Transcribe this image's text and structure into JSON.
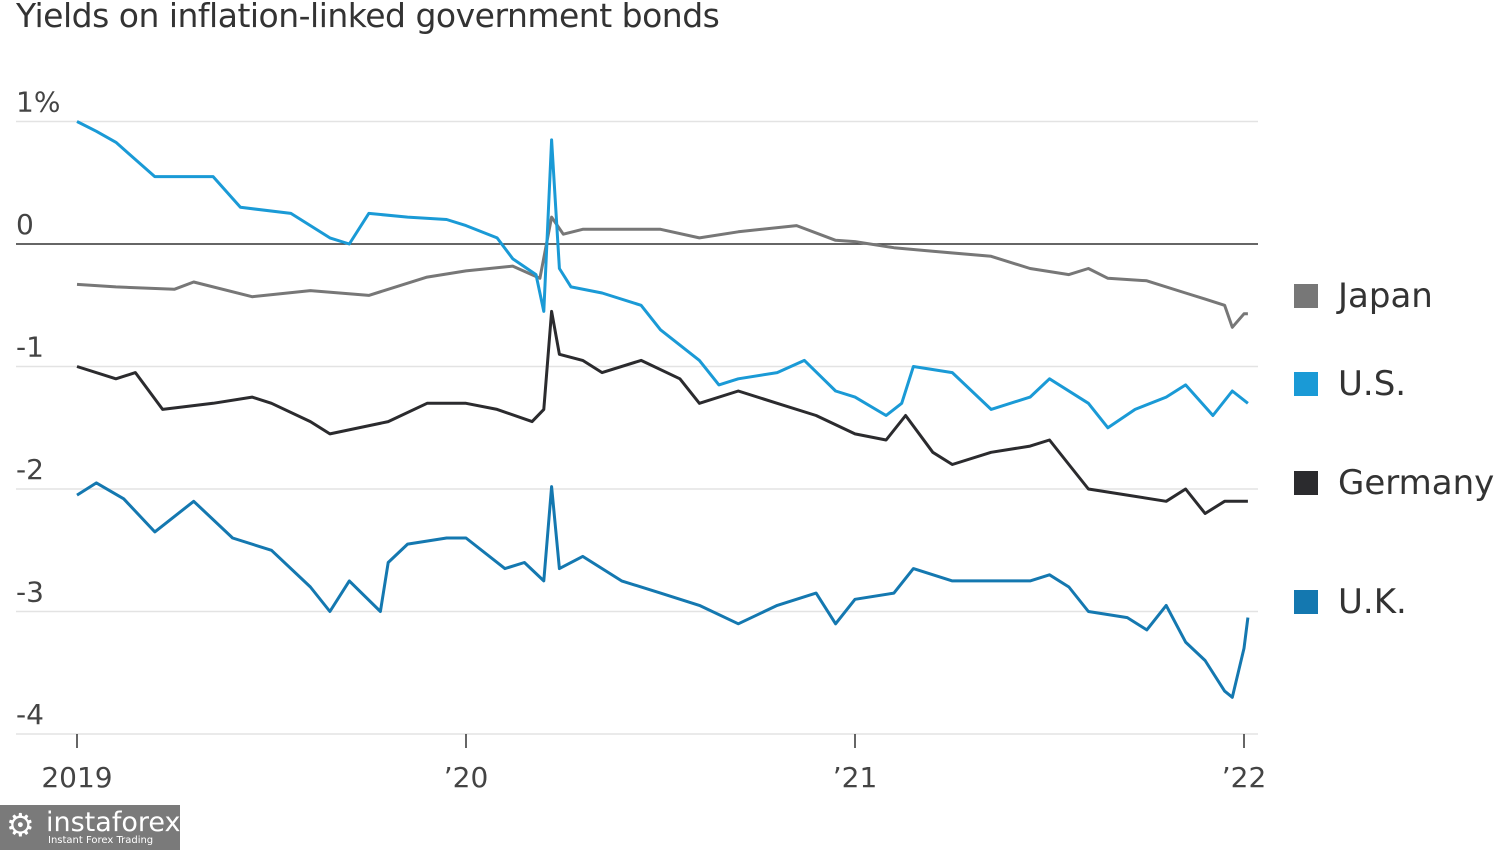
{
  "chart_data": {
    "type": "line",
    "title": "Yields on inflation-linked government bonds",
    "xlabel": "",
    "ylabel": "",
    "ylim": [
      -4,
      1
    ],
    "xlim": [
      2019.0,
      2022.04
    ],
    "grid": true,
    "legend_placement": "right",
    "yticks": [
      {
        "value": 1,
        "label": "1%"
      },
      {
        "value": 0,
        "label": "0"
      },
      {
        "value": -1,
        "label": "-1"
      },
      {
        "value": -2,
        "label": "-2"
      },
      {
        "value": -3,
        "label": "-3"
      },
      {
        "value": -4,
        "label": "-4"
      }
    ],
    "xticks": [
      {
        "value": 2019,
        "label": "2019"
      },
      {
        "value": 2020,
        "label": "’20"
      },
      {
        "value": 2021,
        "label": "’21"
      },
      {
        "value": 2022,
        "label": "’22"
      }
    ],
    "series": [
      {
        "name": "Japan",
        "color": "#777777",
        "x": [
          2019.0,
          2019.1,
          2019.25,
          2019.3,
          2019.45,
          2019.6,
          2019.75,
          2019.9,
          2020.0,
          2020.12,
          2020.19,
          2020.22,
          2020.25,
          2020.3,
          2020.5,
          2020.6,
          2020.7,
          2020.85,
          2020.95,
          2021.0,
          2021.1,
          2021.2,
          2021.35,
          2021.45,
          2021.55,
          2021.6,
          2021.65,
          2021.75,
          2021.85,
          2021.9,
          2021.95,
          2021.97,
          2022.0,
          2022.01
        ],
        "y": [
          -0.33,
          -0.35,
          -0.37,
          -0.31,
          -0.43,
          -0.38,
          -0.42,
          -0.27,
          -0.22,
          -0.18,
          -0.28,
          0.22,
          0.08,
          0.12,
          0.12,
          0.05,
          0.1,
          0.15,
          0.03,
          0.02,
          -0.03,
          -0.06,
          -0.1,
          -0.2,
          -0.25,
          -0.2,
          -0.28,
          -0.3,
          -0.4,
          -0.45,
          -0.5,
          -0.68,
          -0.57,
          -0.57
        ]
      },
      {
        "name": "U.S.",
        "color": "#1a9ad6",
        "x": [
          2019.0,
          2019.05,
          2019.1,
          2019.2,
          2019.35,
          2019.42,
          2019.55,
          2019.65,
          2019.7,
          2019.75,
          2019.85,
          2019.95,
          2020.0,
          2020.08,
          2020.12,
          2020.18,
          2020.2,
          2020.22,
          2020.24,
          2020.27,
          2020.35,
          2020.45,
          2020.5,
          2020.6,
          2020.65,
          2020.7,
          2020.8,
          2020.87,
          2020.95,
          2021.0,
          2021.08,
          2021.12,
          2021.15,
          2021.25,
          2021.35,
          2021.45,
          2021.5,
          2021.6,
          2021.65,
          2021.72,
          2021.8,
          2021.85,
          2021.92,
          2021.97,
          2022.01
        ],
        "y": [
          1.0,
          0.92,
          0.83,
          0.55,
          0.55,
          0.3,
          0.25,
          0.05,
          0.0,
          0.25,
          0.22,
          0.2,
          0.15,
          0.05,
          -0.12,
          -0.25,
          -0.55,
          0.85,
          -0.2,
          -0.35,
          -0.4,
          -0.5,
          -0.7,
          -0.95,
          -1.15,
          -1.1,
          -1.05,
          -0.95,
          -1.2,
          -1.25,
          -1.4,
          -1.3,
          -1.0,
          -1.05,
          -1.35,
          -1.25,
          -1.1,
          -1.3,
          -1.5,
          -1.35,
          -1.25,
          -1.15,
          -1.4,
          -1.2,
          -1.3
        ]
      },
      {
        "name": "Germany",
        "color": "#2b2b2e",
        "x": [
          2019.0,
          2019.1,
          2019.15,
          2019.22,
          2019.35,
          2019.45,
          2019.5,
          2019.6,
          2019.65,
          2019.8,
          2019.9,
          2020.0,
          2020.08,
          2020.17,
          2020.2,
          2020.22,
          2020.24,
          2020.3,
          2020.35,
          2020.45,
          2020.55,
          2020.6,
          2020.7,
          2020.8,
          2020.9,
          2021.0,
          2021.08,
          2021.13,
          2021.2,
          2021.25,
          2021.35,
          2021.45,
          2021.5,
          2021.55,
          2021.6,
          2021.7,
          2021.8,
          2021.85,
          2021.9,
          2021.95,
          2022.01
        ],
        "y": [
          -1.0,
          -1.1,
          -1.05,
          -1.35,
          -1.3,
          -1.25,
          -1.3,
          -1.45,
          -1.55,
          -1.45,
          -1.3,
          -1.3,
          -1.35,
          -1.45,
          -1.35,
          -0.55,
          -0.9,
          -0.95,
          -1.05,
          -0.95,
          -1.1,
          -1.3,
          -1.2,
          -1.3,
          -1.4,
          -1.55,
          -1.6,
          -1.4,
          -1.7,
          -1.8,
          -1.7,
          -1.65,
          -1.6,
          -1.8,
          -2.0,
          -2.05,
          -2.1,
          -2.0,
          -2.2,
          -2.1,
          -2.1
        ]
      },
      {
        "name": "U.K.",
        "color": "#1478b0",
        "x": [
          2019.0,
          2019.05,
          2019.12,
          2019.2,
          2019.3,
          2019.4,
          2019.5,
          2019.6,
          2019.65,
          2019.7,
          2019.78,
          2019.8,
          2019.85,
          2019.95,
          2020.0,
          2020.1,
          2020.15,
          2020.2,
          2020.22,
          2020.24,
          2020.3,
          2020.4,
          2020.5,
          2020.6,
          2020.7,
          2020.8,
          2020.9,
          2020.95,
          2021.0,
          2021.1,
          2021.15,
          2021.25,
          2021.35,
          2021.45,
          2021.5,
          2021.55,
          2021.6,
          2021.7,
          2021.75,
          2021.8,
          2021.85,
          2021.9,
          2021.95,
          2021.97,
          2022.0,
          2022.01
        ],
        "y": [
          -2.05,
          -1.95,
          -2.08,
          -2.35,
          -2.1,
          -2.4,
          -2.5,
          -2.8,
          -3.0,
          -2.75,
          -3.0,
          -2.6,
          -2.45,
          -2.4,
          -2.4,
          -2.65,
          -2.6,
          -2.75,
          -1.98,
          -2.65,
          -2.55,
          -2.75,
          -2.85,
          -2.95,
          -3.1,
          -2.95,
          -2.85,
          -3.1,
          -2.9,
          -2.85,
          -2.65,
          -2.75,
          -2.75,
          -2.75,
          -2.7,
          -2.8,
          -3.0,
          -3.05,
          -3.15,
          -2.95,
          -3.25,
          -3.4,
          -3.65,
          -3.7,
          -3.3,
          -3.05
        ]
      }
    ]
  },
  "watermark": {
    "brand": "instaforex",
    "tagline": "Instant Forex Trading"
  }
}
